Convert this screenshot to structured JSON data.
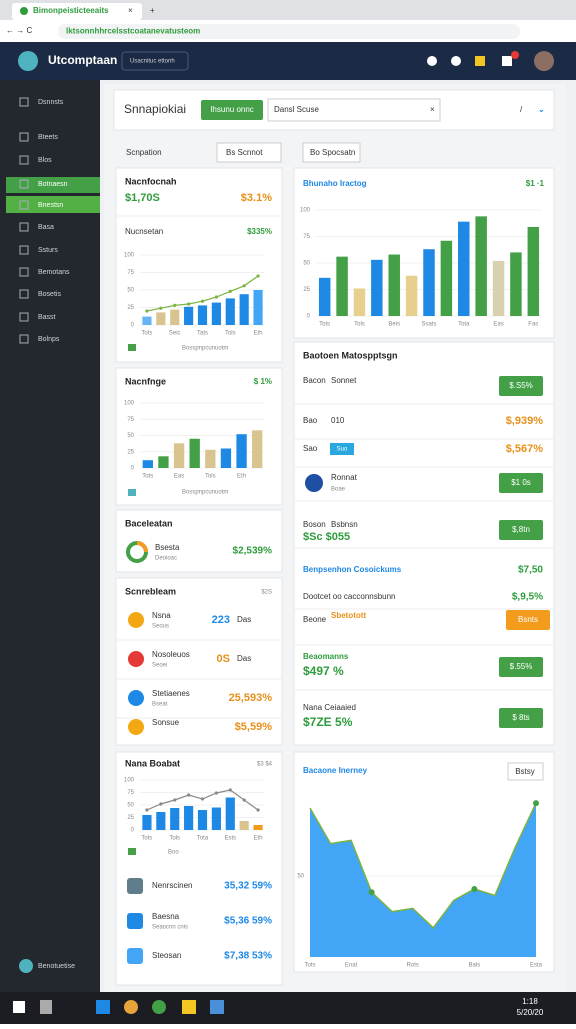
{
  "browser": {
    "tab_title": "Bimonpeisticteeaits",
    "url": "lktsonnhhrcelsstcoatanevatusteom"
  },
  "header": {
    "brand": "Utcomptaan",
    "search": "Usacnituc ettonh"
  },
  "sidebar": {
    "items": [
      "Dsnnsts",
      "Bteets",
      "Blos",
      "Botnaesn",
      "Bnestsn",
      "Basa",
      "Ssturs",
      "Bemotans",
      "Bosetis",
      "Basst",
      "Bolnps"
    ],
    "footer": "Benotuetise"
  },
  "toolbar": {
    "title": "Snnapiokiai",
    "button": "Ihsunu onnc",
    "search": "Dansl Scuse"
  },
  "left_header": {
    "label": "Scnpation",
    "dropdown": "Bs Scnnot"
  },
  "right_header": {
    "chip": "Bo Spocsatn"
  },
  "card1": {
    "title": "Nacnfocnah",
    "value": "$1,70S",
    "change": "$3.1%",
    "subtitle": "Nucnsetan",
    "subvalue": "$335%",
    "legend": "Bosspnpcunuotm"
  },
  "card2": {
    "title": "Nacnfnge",
    "value": "$ 1%",
    "legend": "Bosspnpcunuotm"
  },
  "card3": {
    "title": "Baceleatan",
    "label": "Bsesta",
    "sub": "Deoioac",
    "value": "$2,539%"
  },
  "card4": {
    "title": "Scnrebleam",
    "value": "$2S",
    "rows": [
      [
        "Nsna",
        "Seous",
        "223",
        "Das"
      ],
      [
        "Nosoleuos",
        "Seoei",
        "0S",
        "Das"
      ],
      [
        "Stetiaenes",
        "Bseat",
        "25,593%",
        ""
      ],
      [
        "Sonsue",
        "",
        "$5,59%",
        ""
      ]
    ]
  },
  "card5": {
    "title": "Nana Boabat",
    "value": "$3 $4",
    "legend": "Boo",
    "rows": [
      [
        "Nenrscinen",
        "",
        "35,32 59%"
      ],
      [
        "Baesna",
        "Seaocnn cnis",
        "$5,36 59%"
      ],
      [
        "Steosan",
        "",
        "$7,38 53%"
      ]
    ]
  },
  "right1": {
    "title": "Bhunaho Iractog",
    "value": "$1 ·1"
  },
  "right2": {
    "title": "Baotoen Matospptsgn",
    "rows": [
      {
        "label": "Bacon",
        "sub": "Sonnet",
        "button": "$.S5%"
      },
      {
        "label": "Bao",
        "sub": "010",
        "value": "$,939%"
      },
      {
        "label": "Sao",
        "chip": "Suo",
        "value": "$,567%"
      },
      {
        "label": "Ronnat",
        "sub": "Boae",
        "button": "$1 0s"
      },
      {
        "label": "Boson",
        "sub": "Bsbnsn",
        "value": "$Sc $055",
        "button": "$,8tn"
      }
    ],
    "section": "Benpsenhon Cosoickums",
    "section_value": "$7,50",
    "rows2": [
      {
        "label": "Dootcet oo cacconnsbunn",
        "value": "$,9,5%"
      },
      {
        "label": "Beone",
        "sub": "Sbetotott",
        "button": "Bsnts"
      },
      {
        "label": "Beaomanns",
        "value": "$497 %",
        "button": "$.55%"
      },
      {
        "label": "Nana Ceiaaied",
        "value": "$7ZE 5%",
        "button": "$ 8ts"
      }
    ]
  },
  "right3": {
    "title": "Bacaone Inerney",
    "button": "Bstsy"
  },
  "taskbar": {
    "time": "1:18",
    "date": "5/20/20"
  },
  "charts": [
    {
      "type": "bar",
      "ylim": [
        0,
        100
      ],
      "yticks": [
        0,
        25,
        50,
        75,
        100
      ],
      "categories": [
        "Tots",
        null,
        "Seic",
        null,
        "Tats",
        null,
        "Tols",
        null,
        "Eth"
      ],
      "values": [
        12,
        18,
        22,
        26,
        28,
        32,
        38,
        44,
        50
      ],
      "colors": [
        "#64b5f6",
        "#d9c48f",
        "#d9c48f",
        "#1e88e5",
        "#1e88e5",
        "#1e88e5",
        "#1e88e5",
        "#1e88e5",
        "#42a5f5"
      ],
      "line": {
        "color": "#7cb342",
        "values": [
          20,
          24,
          28,
          30,
          34,
          40,
          48,
          56,
          70
        ]
      }
    },
    {
      "type": "bar",
      "ylim": [
        0,
        100
      ],
      "yticks": [
        0,
        25,
        50,
        75,
        100
      ],
      "categories": [
        "Tots",
        null,
        "Eas",
        null,
        "Tols",
        null,
        "Eth",
        null
      ],
      "values": [
        12,
        18,
        38,
        45,
        28,
        30,
        52,
        58
      ],
      "colors": [
        "#1e88e5",
        "#43a047",
        "#d9c48f",
        "#43a047",
        "#d9c48f",
        "#1e88e5",
        "#1e88e5",
        "#d9c48f"
      ]
    },
    {
      "type": "bar",
      "ylim": [
        0,
        100
      ],
      "yticks": [
        0,
        25,
        50,
        75,
        100
      ],
      "categories": [
        "Tots",
        null,
        "Tols",
        null,
        "Tota",
        null,
        "Ests",
        null,
        "Eth"
      ],
      "values": [
        30,
        36,
        44,
        48,
        40,
        45,
        65,
        18,
        10
      ],
      "colors": [
        "#1e88e5",
        "#1e88e5",
        "#1e88e5",
        "#1e88e5",
        "#1e88e5",
        "#1e88e5",
        "#1e88e5",
        "#d9c48f",
        "#f29b1d"
      ],
      "line": {
        "color": "#888888",
        "values": [
          40,
          52,
          60,
          70,
          62,
          74,
          80,
          60,
          40
        ]
      }
    },
    {
      "type": "bar",
      "ylim": [
        0,
        100
      ],
      "yticks": [
        0,
        25,
        50,
        75,
        100
      ],
      "categories": [
        "Tots",
        null,
        "Tols",
        null,
        "Beis",
        null,
        "Ssats",
        null,
        "Tota",
        null,
        "Eas",
        null,
        "Fas"
      ],
      "values": [
        36,
        56,
        26,
        53,
        58,
        38,
        63,
        71,
        89,
        94,
        52,
        60,
        84
      ],
      "colors": [
        "#1e88e5",
        "#43a047",
        "#e7d08e",
        "#1e88e5",
        "#43a047",
        "#e7d08e",
        "#1e88e5",
        "#43a047",
        "#1e88e5",
        "#43a047",
        "#d9d0b0",
        "#43a047",
        "#43a047"
      ]
    },
    {
      "type": "area",
      "ylim": [
        0,
        100
      ],
      "yticks": [
        50
      ],
      "categories": [
        "Tots",
        null,
        "Enat",
        null,
        null,
        "Rots",
        null,
        null,
        "Bals",
        null,
        null,
        "Esta"
      ],
      "values": [
        92,
        70,
        72,
        40,
        28,
        30,
        18,
        35,
        42,
        38,
        68,
        95
      ],
      "color": "#42a5f5",
      "line": "#7cb342"
    }
  ]
}
